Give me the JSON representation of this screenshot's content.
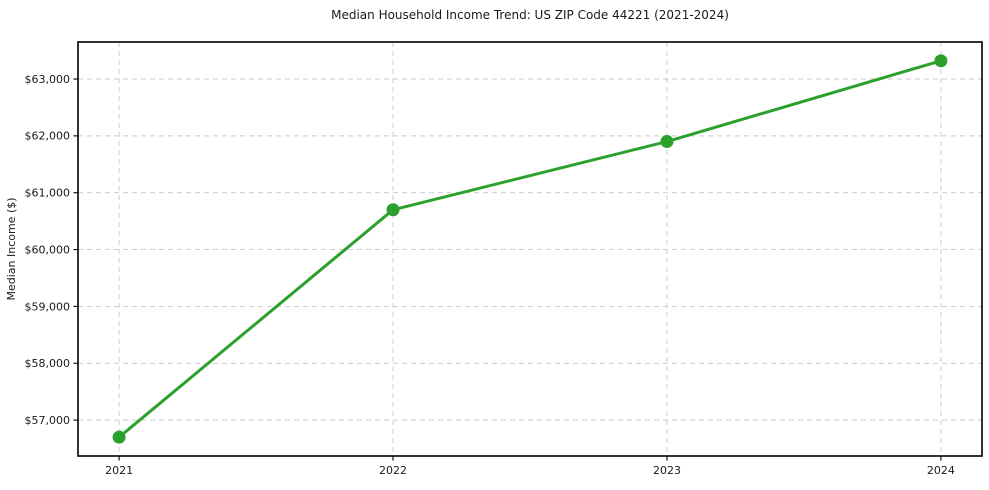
{
  "figure": {
    "title": "Median Household Income Trend: US ZIP Code 44221 (2021-2024)"
  },
  "chart_data": {
    "type": "line",
    "title": "Median Household Income Trend: US ZIP Code 44221 (2021-2024)",
    "xlabel": "",
    "ylabel": "Median Income ($)",
    "x": [
      2021,
      2022,
      2023,
      2024
    ],
    "x_tick_labels": [
      "2021",
      "2022",
      "2023",
      "2024"
    ],
    "series": [
      {
        "name": "Median Household Income",
        "values": [
          56700,
          60700,
          61900,
          63320
        ]
      }
    ],
    "y_ticks": [
      57000,
      58000,
      59000,
      60000,
      61000,
      62000,
      63000
    ],
    "y_tick_labels": [
      "$57,000",
      "$58,000",
      "$59,000",
      "$60,000",
      "$61,000",
      "$62,000",
      "$63,000"
    ],
    "ylim": [
      56369,
      63651
    ],
    "xlim": [
      2020.85,
      2024.15
    ],
    "grid": true,
    "grid_style": "dashed",
    "legend": "none",
    "line_color": "#2ca02c",
    "marker": "circle",
    "grid_color": "#c9c9c9",
    "spine_color": "#000000",
    "tick_label_color": "#1a1a1a",
    "background": "#ffffff"
  }
}
